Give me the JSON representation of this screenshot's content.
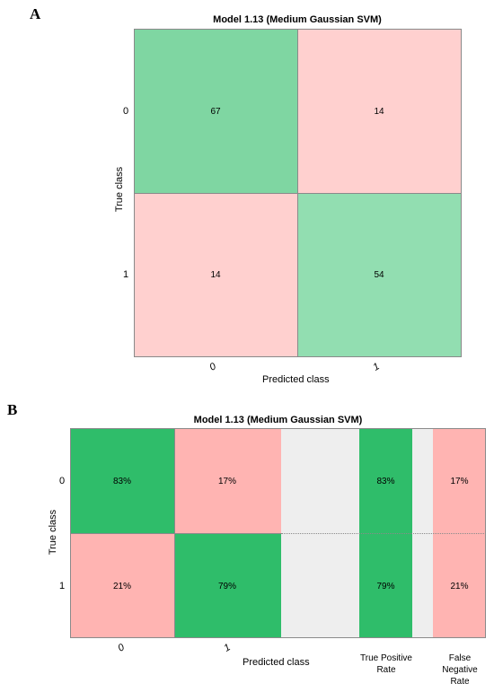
{
  "panel_a": {
    "letter": "A",
    "title": "Model 1.13 (Medium Gaussian SVM)",
    "xlabel": "Predicted class",
    "ylabel": "True class",
    "row_ticks": [
      "0",
      "1"
    ],
    "col_ticks": [
      "0",
      "1"
    ]
  },
  "panel_b": {
    "letter": "B",
    "title": "Model 1.13 (Medium Gaussian SVM)",
    "xlabel": "Predicted class",
    "ylabel": "True class",
    "row_ticks": [
      "0",
      "1"
    ],
    "col_ticks": [
      "0",
      "1"
    ],
    "tpr_label": "True Positive Rate",
    "fnr_label": "False Negative Rate"
  },
  "colors": {
    "green_strong": "#2fbd6a",
    "green_a1": "#7fd6a2",
    "green_a2": "#92deb1",
    "red_a": "#ffd0cf",
    "red_b": "#ffb4b2",
    "gap_gray": "#eeeeee"
  },
  "chart_data": [
    {
      "type": "heatmap",
      "title": "Model 1.13 (Medium Gaussian SVM)",
      "xlabel": "Predicted class",
      "ylabel": "True class",
      "rows": [
        "0",
        "1"
      ],
      "cols": [
        "0",
        "1"
      ],
      "values": [
        [
          67,
          14
        ],
        [
          14,
          54
        ]
      ],
      "labels": [
        [
          "67",
          "14"
        ],
        [
          "14",
          "54"
        ]
      ]
    },
    {
      "type": "heatmap",
      "title": "Model 1.13 (Medium Gaussian SVM)",
      "xlabel": "Predicted class",
      "ylabel": "True class",
      "rows": [
        "0",
        "1"
      ],
      "cols": [
        "0",
        "1"
      ],
      "values": [
        [
          83,
          17
        ],
        [
          21,
          79
        ]
      ],
      "labels": [
        [
          "83%",
          "17%"
        ],
        [
          "21%",
          "79%"
        ]
      ],
      "true_positive_rate": {
        "values": [
          83,
          79
        ],
        "labels": [
          "83%",
          "79%"
        ]
      },
      "false_negative_rate": {
        "values": [
          17,
          21
        ],
        "labels": [
          "17%",
          "21%"
        ]
      }
    }
  ]
}
